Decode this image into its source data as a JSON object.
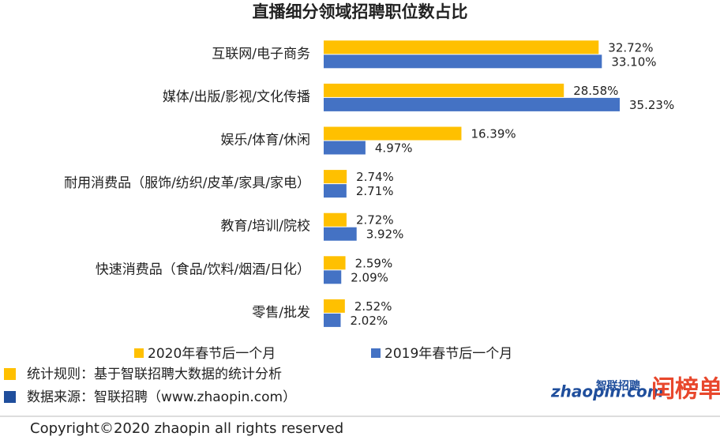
{
  "chart_data": {
    "type": "hbar",
    "title": "直播细分领域招聘职位数占比",
    "categories": [
      "互联网/电子商务",
      "媒体/出版/影视/文化传播",
      "娱乐/体育/休闲",
      "耐用消费品（服饰/纺织/皮革/家具/家电）",
      "教育/培训/院校",
      "快速消费品（食品/饮料/烟酒/日化）",
      "零售/批发"
    ],
    "series": [
      {
        "name": "2020年春节后一个月",
        "color": "#FFC000",
        "values": [
          32.72,
          28.58,
          16.39,
          2.74,
          2.72,
          2.59,
          2.52
        ],
        "value_labels": [
          "32.72%",
          "28.58%",
          "16.39%",
          "2.74%",
          "2.72%",
          "2.59%",
          "2.52%"
        ]
      },
      {
        "name": "2019年春节后一个月",
        "color": "#4472C4",
        "values": [
          33.1,
          35.23,
          4.97,
          2.71,
          3.92,
          2.09,
          2.02
        ],
        "value_labels": [
          "33.10%",
          "35.23%",
          "4.97%",
          "2.71%",
          "3.92%",
          "2.09%",
          "2.02%"
        ]
      }
    ],
    "legend": "bottom"
  },
  "notes": [
    "统计规则：基于智联招聘大数据的统计分析",
    "数据来源：智联招聘（www.zhaopin.com）"
  ],
  "logo": {
    "brand": "智联招聘",
    "site": "zhaopin.com",
    "badge": "闰榜单"
  },
  "copyright": "Copyright©2020 zhaopin all rights reserved"
}
